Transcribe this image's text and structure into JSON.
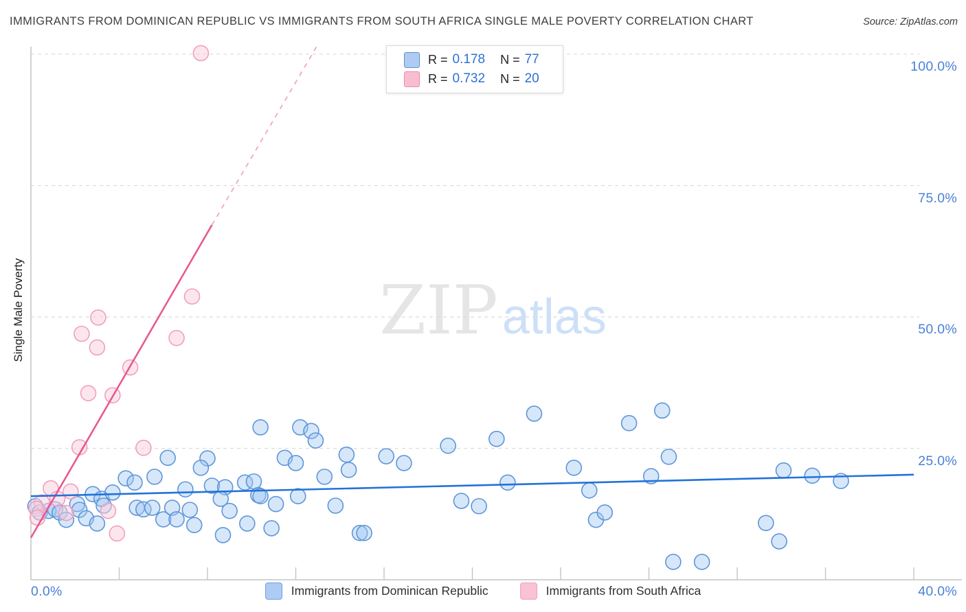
{
  "title": "IMMIGRANTS FROM DOMINICAN REPUBLIC VS IMMIGRANTS FROM SOUTH AFRICA SINGLE MALE POVERTY CORRELATION CHART",
  "source": "Source: ZipAtlas.com",
  "watermark": {
    "zip": "ZIP",
    "atlas": "atlas"
  },
  "y_axis_title": "Single Male Poverty",
  "legend_box": {
    "rows": [
      {
        "series": "Immigrants from Dominican Republic",
        "r_label": "R =",
        "r": "0.178",
        "n_label": "N =",
        "n": "77"
      },
      {
        "series": "Immigrants from South Africa",
        "r_label": "R =",
        "r": "0.732",
        "n_label": "N =",
        "n": "20"
      }
    ]
  },
  "bottom_legend": [
    {
      "label": "Immigrants from Dominican Republic",
      "color": "#aecbf3"
    },
    {
      "label": "Immigrants from South Africa",
      "color": "#f9c2d6"
    }
  ],
  "colors": {
    "blue_stroke": "#5e95d8",
    "blue_fill": "rgba(158,197,244,0.42)",
    "blue_line": "#2272d9",
    "pink_stroke": "#f29ebc",
    "pink_fill": "rgba(249,205,220,0.5)",
    "pink_line": "#e75a92",
    "pink_line_dashed": "#f2a6c3",
    "grid": "#dcdcdc",
    "axis": "#c4c4c4",
    "tick_label": "#4a80d8"
  },
  "chart_data": {
    "type": "scatter",
    "title": "Immigrants from Dominican Republic vs Immigrants from South Africa Single Male Poverty Correlation Chart",
    "xlabel": "",
    "ylabel": "Single Male Poverty",
    "x_unit": "%",
    "y_unit": "%",
    "xlim": [
      0,
      40
    ],
    "ylim": [
      0,
      102.3
    ],
    "x_axis_labels": {
      "min": "0.0%",
      "max": "40.0%"
    },
    "y_gridlines": [
      {
        "value": 100,
        "label": "100.0%"
      },
      {
        "value": 75,
        "label": "75.0%"
      },
      {
        "value": 50,
        "label": "50.0%"
      },
      {
        "value": 25,
        "label": "25.0%"
      }
    ],
    "x_minor_ticks": [
      4,
      8,
      12,
      16,
      20,
      24,
      28,
      32,
      36,
      40
    ],
    "legend_position": "top-center",
    "grid": "dashed-horizontal",
    "series": [
      {
        "name": "Immigrants from Dominican Republic",
        "R": 0.178,
        "N": 77,
        "points": [
          [
            0.2,
            14.0
          ],
          [
            0.4,
            12.8
          ],
          [
            0.8,
            13.1
          ],
          [
            1.1,
            13.4
          ],
          [
            1.3,
            12.8
          ],
          [
            1.6,
            11.4
          ],
          [
            2.1,
            14.4
          ],
          [
            2.2,
            13.3
          ],
          [
            2.5,
            11.7
          ],
          [
            2.8,
            16.3
          ],
          [
            3.2,
            15.4
          ],
          [
            3.3,
            14.1
          ],
          [
            3.7,
            16.6
          ],
          [
            4.3,
            19.3
          ],
          [
            4.7,
            18.5
          ],
          [
            5.6,
            19.6
          ],
          [
            4.8,
            13.7
          ],
          [
            5.1,
            13.4
          ],
          [
            5.5,
            13.7
          ],
          [
            6.0,
            11.5
          ],
          [
            3.0,
            10.7
          ],
          [
            6.2,
            23.2
          ],
          [
            8.0,
            23.1
          ],
          [
            7.7,
            21.3
          ],
          [
            7.0,
            17.2
          ],
          [
            8.2,
            17.9
          ],
          [
            8.8,
            17.6
          ],
          [
            8.6,
            15.4
          ],
          [
            9.7,
            18.5
          ],
          [
            10.1,
            18.7
          ],
          [
            10.3,
            16.1
          ],
          [
            6.4,
            13.7
          ],
          [
            7.2,
            13.3
          ],
          [
            6.6,
            11.5
          ],
          [
            9.0,
            13.1
          ],
          [
            9.8,
            10.7
          ],
          [
            7.4,
            10.4
          ],
          [
            8.7,
            8.5
          ],
          [
            10.4,
            29.0
          ],
          [
            12.2,
            29.0
          ],
          [
            12.7,
            28.3
          ],
          [
            12.9,
            26.5
          ],
          [
            11.5,
            23.2
          ],
          [
            12.0,
            22.2
          ],
          [
            14.3,
            23.8
          ],
          [
            14.4,
            20.9
          ],
          [
            13.3,
            19.6
          ],
          [
            16.1,
            23.5
          ],
          [
            16.9,
            22.2
          ],
          [
            10.4,
            15.9
          ],
          [
            11.1,
            14.4
          ],
          [
            12.1,
            15.9
          ],
          [
            13.8,
            14.1
          ],
          [
            10.9,
            9.8
          ],
          [
            14.9,
            8.9
          ],
          [
            15.1,
            8.9
          ],
          [
            18.9,
            25.5
          ],
          [
            21.1,
            26.8
          ],
          [
            22.8,
            31.6
          ],
          [
            27.1,
            29.8
          ],
          [
            28.6,
            32.2
          ],
          [
            28.9,
            23.4
          ],
          [
            24.6,
            21.3
          ],
          [
            28.1,
            19.7
          ],
          [
            21.6,
            18.5
          ],
          [
            25.3,
            17.0
          ],
          [
            19.5,
            15.0
          ],
          [
            20.3,
            14.0
          ],
          [
            25.6,
            11.4
          ],
          [
            26.0,
            12.8
          ],
          [
            29.1,
            3.4
          ],
          [
            30.4,
            3.4
          ],
          [
            34.1,
            20.8
          ],
          [
            35.4,
            19.8
          ],
          [
            36.7,
            18.8
          ],
          [
            33.3,
            10.8
          ],
          [
            33.9,
            7.3
          ]
        ],
        "trend_line": {
          "x1": 0,
          "y1": 15.9,
          "x2": 40,
          "y2": 20.0,
          "style": "solid"
        }
      },
      {
        "name": "Immigrants from South Africa",
        "R": 0.732,
        "N": 20,
        "points": [
          [
            7.7,
            100.2
          ],
          [
            7.3,
            53.9
          ],
          [
            3.05,
            49.9
          ],
          [
            2.3,
            46.8
          ],
          [
            6.6,
            46.0
          ],
          [
            3.0,
            44.2
          ],
          [
            4.5,
            40.4
          ],
          [
            2.6,
            35.5
          ],
          [
            3.7,
            35.1
          ],
          [
            2.2,
            25.2
          ],
          [
            5.1,
            25.1
          ],
          [
            0.9,
            17.4
          ],
          [
            1.8,
            16.8
          ],
          [
            1.2,
            15.4
          ],
          [
            0.5,
            14.7
          ],
          [
            0.25,
            13.5
          ],
          [
            1.6,
            12.7
          ],
          [
            3.5,
            13.1
          ],
          [
            3.9,
            8.8
          ],
          [
            0.3,
            11.8
          ]
        ],
        "trend_line": {
          "x1": 0,
          "y1": 8.0,
          "x2": 8.2,
          "y2": 67.5,
          "style": "solid"
        },
        "trend_line_extension": {
          "x1": 8.2,
          "y1": 67.5,
          "x2": 13.05,
          "y2": 102.2,
          "style": "dashed"
        }
      }
    ]
  }
}
